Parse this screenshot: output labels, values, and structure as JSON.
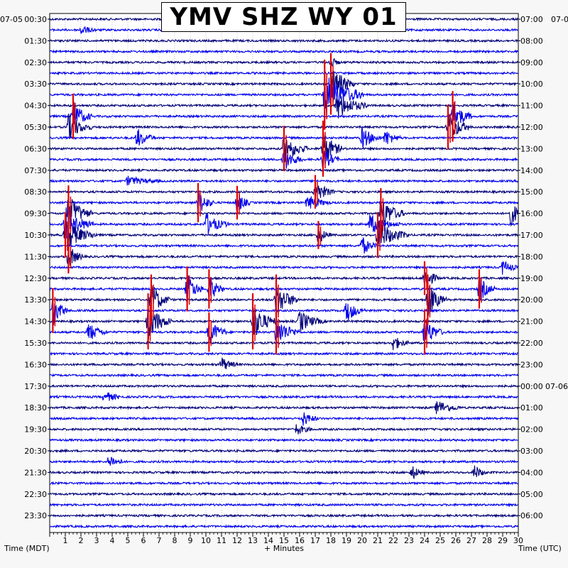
{
  "chart_data": {
    "type": "helicorder",
    "title": "YMV SHZ WY 01",
    "xlabel": "+ Minutes",
    "ylabel_left": "Time (MDT)",
    "ylabel_right": "Time (UTC)",
    "xlim": [
      0,
      30
    ],
    "x_ticks": [
      "1",
      "2",
      "3",
      "4",
      "5",
      "6",
      "7",
      "8",
      "9",
      "10",
      "11",
      "12",
      "13",
      "14",
      "15",
      "16",
      "17",
      "18",
      "19",
      "20",
      "21",
      "22",
      "23",
      "24",
      "25",
      "26",
      "27",
      "28",
      "29",
      "30"
    ],
    "date_left": "07-05",
    "date_right": "07-0",
    "date_right_midnight": "07-06",
    "rows_per_hour": 2,
    "row_minutes": 30,
    "left_time_labels": [
      "00:30",
      "01:30",
      "02:30",
      "03:30",
      "04:30",
      "05:30",
      "06:30",
      "07:30",
      "08:30",
      "09:30",
      "10:30",
      "11:30",
      "12:30",
      "13:30",
      "14:30",
      "15:30",
      "16:30",
      "17:30",
      "18:30",
      "19:30",
      "20:30",
      "21:30",
      "22:30",
      "23:30"
    ],
    "right_time_labels": [
      "07:00",
      "08:00",
      "09:00",
      "10:00",
      "11:00",
      "12:00",
      "13:00",
      "14:00",
      "15:00",
      "16:00",
      "17:00",
      "18:00",
      "19:00",
      "20:00",
      "21:00",
      "22:00",
      "23:00",
      "00:00",
      "01:00",
      "02:00",
      "03:00",
      "04:00",
      "05:00",
      "06:00"
    ],
    "trace_colors": [
      "#00007a",
      "#0000ee"
    ],
    "clip_color": "#e00000",
    "grid": true,
    "events": [
      {
        "row": 1,
        "minute": 2.0,
        "amp": 0.5,
        "dur": 1.0,
        "clip": false
      },
      {
        "row": 4,
        "minute": 18.0,
        "amp": 0.6,
        "dur": 0.6,
        "clip": false
      },
      {
        "row": 6,
        "minute": 18.0,
        "amp": 2.2,
        "dur": 1.5,
        "clip": true
      },
      {
        "row": 7,
        "minute": 17.6,
        "amp": 2.5,
        "dur": 2.5,
        "clip": true
      },
      {
        "row": 8,
        "minute": 18.4,
        "amp": 1.4,
        "dur": 2.0,
        "clip": false
      },
      {
        "row": 9,
        "minute": 1.5,
        "amp": 1.6,
        "dur": 1.2,
        "clip": true
      },
      {
        "row": 9,
        "minute": 25.8,
        "amp": 1.8,
        "dur": 1.2,
        "clip": true
      },
      {
        "row": 10,
        "minute": 1.2,
        "amp": 1.4,
        "dur": 1.5,
        "clip": false
      },
      {
        "row": 10,
        "minute": 25.5,
        "amp": 1.6,
        "dur": 1.5,
        "clip": true
      },
      {
        "row": 11,
        "minute": 5.6,
        "amp": 1.0,
        "dur": 1.2,
        "clip": false
      },
      {
        "row": 11,
        "minute": 20.0,
        "amp": 1.2,
        "dur": 1.2,
        "clip": false
      },
      {
        "row": 11,
        "minute": 21.5,
        "amp": 0.9,
        "dur": 1.0,
        "clip": false
      },
      {
        "row": 12,
        "minute": 17.5,
        "amp": 2.0,
        "dur": 1.2,
        "clip": true
      },
      {
        "row": 12,
        "minute": 15.0,
        "amp": 1.6,
        "dur": 1.5,
        "clip": true
      },
      {
        "row": 13,
        "minute": 15.0,
        "amp": 1.2,
        "dur": 1.2,
        "clip": false
      },
      {
        "row": 13,
        "minute": 17.5,
        "amp": 1.2,
        "dur": 1.0,
        "clip": false
      },
      {
        "row": 15,
        "minute": 5.0,
        "amp": 0.5,
        "dur": 2.0,
        "clip": false
      },
      {
        "row": 16,
        "minute": 17.0,
        "amp": 1.2,
        "dur": 1.2,
        "clip": true
      },
      {
        "row": 17,
        "minute": 9.5,
        "amp": 1.4,
        "dur": 1.0,
        "clip": true
      },
      {
        "row": 17,
        "minute": 12.0,
        "amp": 1.2,
        "dur": 0.8,
        "clip": true
      },
      {
        "row": 17,
        "minute": 16.5,
        "amp": 0.8,
        "dur": 1.5,
        "clip": false
      },
      {
        "row": 18,
        "minute": 1.2,
        "amp": 2.0,
        "dur": 1.5,
        "clip": true
      },
      {
        "row": 18,
        "minute": 21.2,
        "amp": 1.8,
        "dur": 1.5,
        "clip": true
      },
      {
        "row": 18,
        "minute": 29.5,
        "amp": 1.2,
        "dur": 1.2,
        "clip": false
      },
      {
        "row": 19,
        "minute": 1.0,
        "amp": 1.8,
        "dur": 1.8,
        "clip": false
      },
      {
        "row": 19,
        "minute": 10.0,
        "amp": 1.2,
        "dur": 1.5,
        "clip": false
      },
      {
        "row": 19,
        "minute": 20.5,
        "amp": 1.0,
        "dur": 2.0,
        "clip": false
      },
      {
        "row": 20,
        "minute": 1.0,
        "amp": 1.6,
        "dur": 2.0,
        "clip": true
      },
      {
        "row": 20,
        "minute": 21.0,
        "amp": 1.6,
        "dur": 2.0,
        "clip": true
      },
      {
        "row": 20,
        "minute": 17.2,
        "amp": 1.0,
        "dur": 0.8,
        "clip": true
      },
      {
        "row": 21,
        "minute": 20.0,
        "amp": 1.0,
        "dur": 1.0,
        "clip": false
      },
      {
        "row": 22,
        "minute": 1.2,
        "amp": 1.2,
        "dur": 1.0,
        "clip": true
      },
      {
        "row": 23,
        "minute": 29.0,
        "amp": 0.8,
        "dur": 1.0,
        "clip": false
      },
      {
        "row": 24,
        "minute": 24.0,
        "amp": 1.2,
        "dur": 1.0,
        "clip": true
      },
      {
        "row": 25,
        "minute": 8.8,
        "amp": 1.6,
        "dur": 1.0,
        "clip": true
      },
      {
        "row": 25,
        "minute": 10.2,
        "amp": 1.4,
        "dur": 1.0,
        "clip": true
      },
      {
        "row": 25,
        "minute": 27.5,
        "amp": 1.4,
        "dur": 1.0,
        "clip": true
      },
      {
        "row": 26,
        "minute": 6.5,
        "amp": 1.8,
        "dur": 1.2,
        "clip": true
      },
      {
        "row": 26,
        "minute": 14.5,
        "amp": 1.8,
        "dur": 1.5,
        "clip": true
      },
      {
        "row": 26,
        "minute": 24.2,
        "amp": 1.8,
        "dur": 1.2,
        "clip": true
      },
      {
        "row": 27,
        "minute": 0.2,
        "amp": 1.6,
        "dur": 1.0,
        "clip": true
      },
      {
        "row": 27,
        "minute": 19.0,
        "amp": 1.2,
        "dur": 1.2,
        "clip": false
      },
      {
        "row": 28,
        "minute": 6.3,
        "amp": 2.0,
        "dur": 1.5,
        "clip": true
      },
      {
        "row": 28,
        "minute": 13.0,
        "amp": 2.0,
        "dur": 1.5,
        "clip": true
      },
      {
        "row": 28,
        "minute": 16.0,
        "amp": 1.2,
        "dur": 1.5,
        "clip": false
      },
      {
        "row": 29,
        "minute": 2.5,
        "amp": 1.0,
        "dur": 1.2,
        "clip": false
      },
      {
        "row": 29,
        "minute": 10.2,
        "amp": 1.4,
        "dur": 1.2,
        "clip": true
      },
      {
        "row": 29,
        "minute": 14.5,
        "amp": 1.6,
        "dur": 1.5,
        "clip": true
      },
      {
        "row": 29,
        "minute": 24.0,
        "amp": 1.6,
        "dur": 1.2,
        "clip": true
      },
      {
        "row": 30,
        "minute": 22.0,
        "amp": 0.8,
        "dur": 1.0,
        "clip": false
      },
      {
        "row": 32,
        "minute": 11.0,
        "amp": 0.8,
        "dur": 1.0,
        "clip": false
      },
      {
        "row": 35,
        "minute": 3.5,
        "amp": 0.6,
        "dur": 1.2,
        "clip": false
      },
      {
        "row": 36,
        "minute": 24.8,
        "amp": 0.8,
        "dur": 1.5,
        "clip": false
      },
      {
        "row": 37,
        "minute": 16.2,
        "amp": 0.8,
        "dur": 1.0,
        "clip": false
      },
      {
        "row": 38,
        "minute": 15.8,
        "amp": 0.6,
        "dur": 1.0,
        "clip": false
      },
      {
        "row": 41,
        "minute": 3.8,
        "amp": 0.7,
        "dur": 1.0,
        "clip": false
      },
      {
        "row": 42,
        "minute": 23.2,
        "amp": 0.8,
        "dur": 0.8,
        "clip": false
      },
      {
        "row": 42,
        "minute": 27.2,
        "amp": 0.8,
        "dur": 0.8,
        "clip": false
      }
    ]
  }
}
